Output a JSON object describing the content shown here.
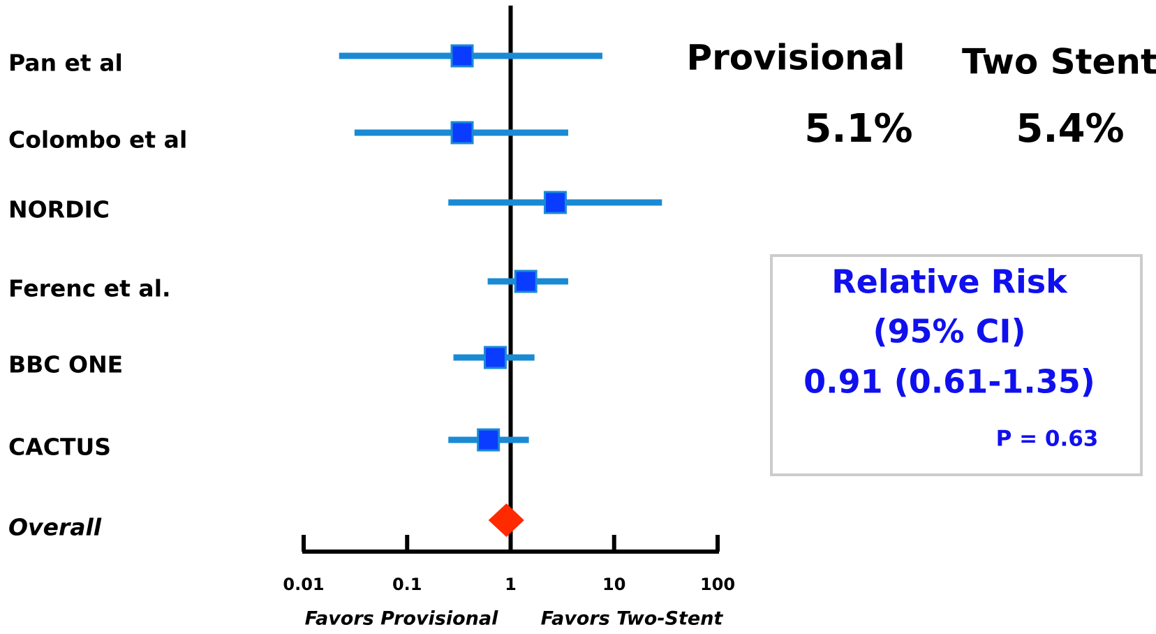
{
  "chart_data": {
    "type": "forest",
    "categories": [
      "Pan et al",
      "Colombo et al",
      "NORDIC",
      "Ferenc et al.",
      "BBC ONE",
      "CACTUS",
      "Overall"
    ],
    "values": [
      0.34,
      0.34,
      2.7,
      1.4,
      0.71,
      0.61,
      0.91
    ],
    "lower": [
      0.022,
      0.031,
      0.25,
      0.6,
      0.28,
      0.25,
      0.61
    ],
    "upper": [
      7.7,
      3.6,
      29,
      3.6,
      1.7,
      1.5,
      1.35
    ],
    "ci_color": "#1a8ad4",
    "marker_color": "#0a3cff",
    "overall_color": "#ff2a00",
    "xlim": [
      0.01,
      100
    ],
    "xticks": [
      0.01,
      0.1,
      1,
      10,
      100
    ],
    "log_x": true,
    "reference_line": 1,
    "x_labels": [
      "Favors Provisional",
      "Favors Two-Stent"
    ]
  },
  "rates": {
    "headers": [
      "Provisional",
      "Two Stent"
    ],
    "values": [
      "5.1%",
      "5.4%"
    ]
  },
  "summary_box": {
    "title": "Relative Risk",
    "subtitle": "(95% CI)",
    "estimate": "0.91 (0.61-1.35)",
    "p_value": "P = 0.63"
  }
}
